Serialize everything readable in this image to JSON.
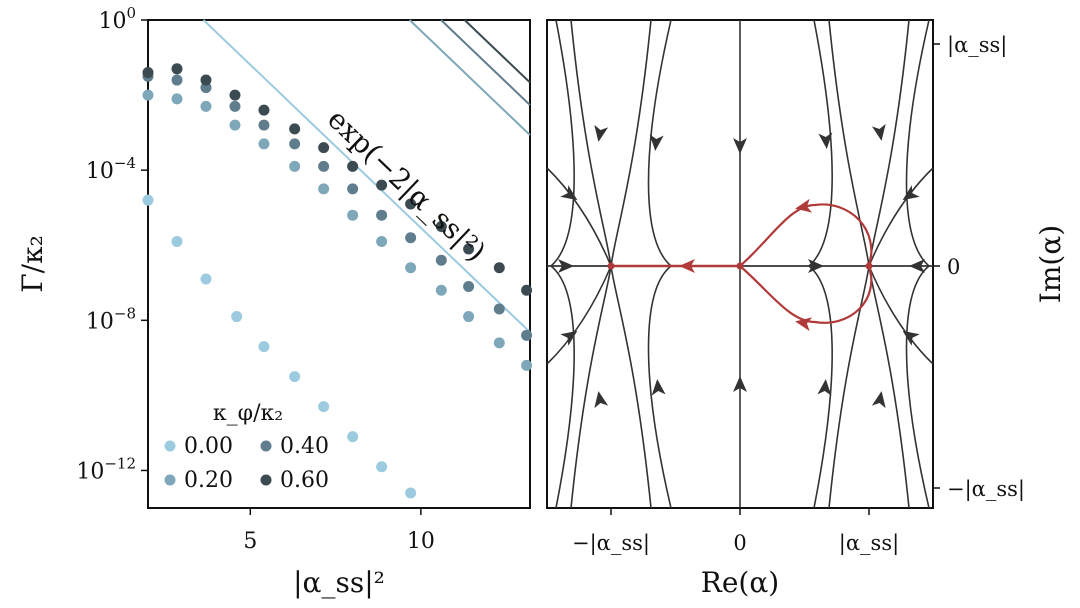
{
  "chart_data": [
    {
      "type": "scatter",
      "panel": "left",
      "xlabel": "|α_ss|²",
      "ylabel": "Γ/κ₂",
      "xlim": [
        2.0,
        13.2
      ],
      "ylim_log10": [
        -13.0,
        0.0
      ],
      "yscale": "log",
      "xticks": [
        5,
        10
      ],
      "xtick_labels": [
        "5",
        "10"
      ],
      "yticks": [
        {
          "exp": 0,
          "base": "10",
          "sup": "0"
        },
        {
          "exp": -4,
          "base": "10",
          "sup": "−4"
        },
        {
          "exp": -8,
          "base": "10",
          "sup": "−8"
        },
        {
          "exp": -12,
          "base": "10",
          "sup": "−12"
        }
      ],
      "legend": {
        "title": "κ_φ/κ₂",
        "position": "lower-left",
        "entries": [
          "0.00",
          "0.20",
          "0.40",
          "0.60"
        ]
      },
      "annotation": "exp(−2|α_ss|²)",
      "series": [
        {
          "name": "0.00",
          "color": "#9ccbe0",
          "points": [
            [
              2.0,
              -4.8
            ],
            [
              2.85,
              -5.9
            ],
            [
              3.7,
              -6.9
            ],
            [
              4.6,
              -7.9
            ],
            [
              5.4,
              -8.7
            ],
            [
              6.3,
              -9.5
            ],
            [
              7.15,
              -10.3
            ],
            [
              8.0,
              -11.1
            ],
            [
              8.85,
              -11.9
            ],
            [
              9.7,
              -12.6
            ]
          ],
          "line_intercept_log10": 3.15
        },
        {
          "name": "0.20",
          "color": "#7fa7ba",
          "points": [
            [
              2.0,
              -2.0
            ],
            [
              2.85,
              -2.1
            ],
            [
              3.7,
              -2.3
            ],
            [
              4.55,
              -2.8
            ],
            [
              5.4,
              -3.3
            ],
            [
              6.3,
              -3.9
            ],
            [
              7.15,
              -4.5
            ],
            [
              8.0,
              -5.2
            ],
            [
              8.85,
              -5.9
            ],
            [
              9.7,
              -6.6
            ],
            [
              10.6,
              -7.2
            ],
            [
              11.4,
              -7.9
            ],
            [
              12.3,
              -8.6
            ],
            [
              13.1,
              -9.2
            ]
          ],
          "line_intercept_log10": 8.4
        },
        {
          "name": "0.40",
          "color": "#5f7d8d",
          "points": [
            [
              2.0,
              -1.5
            ],
            [
              2.85,
              -1.6
            ],
            [
              3.7,
              -1.8
            ],
            [
              4.55,
              -2.3
            ],
            [
              5.4,
              -2.8
            ],
            [
              6.3,
              -3.3
            ],
            [
              7.15,
              -3.9
            ],
            [
              8.0,
              -4.5
            ],
            [
              8.85,
              -5.2
            ],
            [
              9.7,
              -5.8
            ],
            [
              10.6,
              -6.4
            ],
            [
              11.4,
              -7.1
            ],
            [
              12.3,
              -7.7
            ],
            [
              13.1,
              -8.4
            ]
          ],
          "line_intercept_log10": 9.2
        },
        {
          "name": "0.60",
          "color": "#3c4a52",
          "points": [
            [
              2.0,
              -1.4
            ],
            [
              2.85,
              -1.3
            ],
            [
              3.7,
              -1.6
            ],
            [
              4.55,
              -2.0
            ],
            [
              5.4,
              -2.4
            ],
            [
              6.3,
              -2.9
            ],
            [
              7.15,
              -3.4
            ],
            [
              8.0,
              -3.9
            ],
            [
              8.85,
              -4.4
            ],
            [
              9.7,
              -4.9
            ],
            [
              10.6,
              -5.5
            ],
            [
              11.4,
              -6.1
            ],
            [
              12.3,
              -6.6
            ],
            [
              13.1,
              -7.2
            ]
          ],
          "line_intercept_log10": 9.8
        }
      ]
    },
    {
      "type": "diagram",
      "panel": "right",
      "xlabel": "Re(α)",
      "ylabel": "Im(α)",
      "xticks": [
        -1,
        0,
        1
      ],
      "xtick_labels": [
        "−|α_ss|",
        "0",
        "|α_ss|"
      ],
      "yticks": [
        1,
        0,
        -1
      ],
      "ytick_labels": [
        "|α_ss|",
        "0",
        "−|α_ss|"
      ],
      "xlim": [
        -1.5,
        1.5
      ],
      "ylim": [
        -1.1,
        1.1
      ],
      "fixed_points": [
        [
          -1,
          0
        ],
        [
          0,
          0
        ],
        [
          1,
          0
        ]
      ],
      "highlight_color": "#b03a3a",
      "flow_color": "#333333"
    }
  ]
}
